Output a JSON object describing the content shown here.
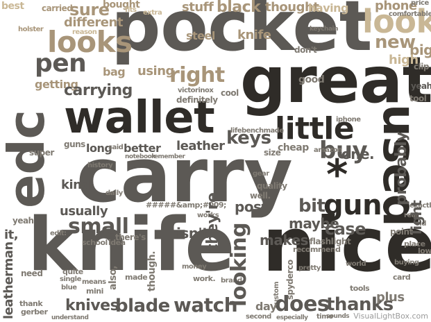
{
  "cloud": {
    "words": {
      "pocket": "pocket",
      "great": "great",
      "carry": "carry",
      "knife": "knife",
      "nice": "nice",
      "wallet": "wallet",
      "edc": "edc",
      "used": "used",
      "looks": "looks",
      "look": "look",
      "pen": "pen",
      "little": "little",
      "small": "small",
      "gun": "gun",
      "knives": "knives",
      "blade": "blade",
      "watch": "watch",
      "does": "does",
      "thanks": "thanks",
      "case": "case",
      "looking": "looking",
      "right": "right",
      "keys": "keys",
      "sure": "sure",
      "carrying": "carrying",
      "better": "better",
      "leather": "leather",
      "post": "post",
      "makes": "makes",
      "buy": "buy",
      "probably": "probably",
      "light": "light",
      "kind": "kind",
      "usually": "usually",
      "theyre": "they're",
      "isnt": "isn't",
      "maybe": "maybe",
      "bit": "bit",
      "its": "it,",
      "leatherman": "leatherman",
      "different": "different",
      "bought": "bought",
      "stuff": "stuff",
      "black": "black",
      "thought": "thought",
      "having": "having",
      "phone": "phone",
      "new": "new",
      "big": "big",
      "high": "high",
      "getting": "getting",
      "bag": "bag",
      "using": "using",
      "steel": "steel",
      "carried": "carried",
      "best": "best",
      "good": "good",
      "holster": "holster",
      "one": "one.",
      "iphone": "iphone",
      "keychain": "keychain",
      "flashlight": "flashlight",
      "recommend": "recommend",
      "spyderco": "spyderco",
      "plus": "plus",
      "day": "day",
      "time": "time",
      "need": "need",
      "cheap": "cheap",
      "amazon": "amazon",
      "super": "super",
      "guns": "guns",
      "long": "long",
      "said": "said",
      "quality": "quality",
      "well": "well.",
      "edit": "edit:",
      "yeah": "yeah",
      "school": "school",
      "idea": "idea",
      "point": "point",
      "second": "second",
      "means": "means",
      "mini": "mini",
      "quite": "quite",
      "single": "single",
      "blue": "blue",
      "thank": "thank",
      "gerber": "gerber",
      "understand": "understand",
      "dont": "don't",
      "tool": "tool",
      "comfortable": "comfortable",
      "price": "price",
      "clip": "clip",
      "victorinox": "victorinox",
      "definitely": "definitely",
      "lifebenchmade": "lifebenchmade",
      "haven't": "haven't",
      "size": "size",
      "history": "history",
      "notebook": "notebook",
      "remember": "remember",
      "daily": "daily",
      "cool": "cool",
      "works": "works",
      "world": "world",
      "card": "card",
      "buying": "buying",
      "place": "place",
      "low": "low",
      "tools": "tools",
      "custom": "custom",
      "especially": "especially",
      "real": "real",
      "sounds": "sounds",
      "entry": "#####&amp;#009;",
      "made": "made",
      "also": "also,",
      "though": "though.",
      "there": "there's",
      "gear": "gear",
      "pretty": "pretty",
      "work": "work.",
      "money": "money",
      "exactly": "exactly",
      "brand": "brand",
      "old": "old",
      "reason": "reason",
      "fits": "fits",
      "extra": "extra"
    },
    "watermark": "VisualLightBox.com"
  }
}
